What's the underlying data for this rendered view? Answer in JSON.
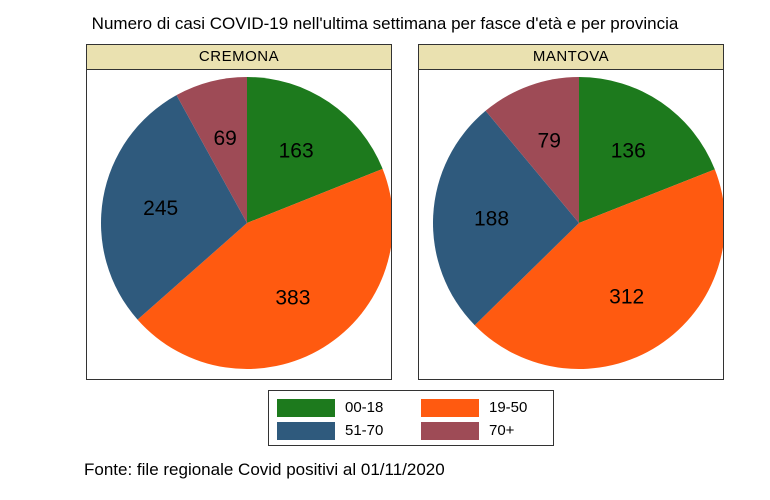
{
  "title": "Numero di casi COVID-19 nell'ultima settimana per fasce d'età e per provincia",
  "source": "Fonte: file regionale Covid positivi al 01/11/2020",
  "chart_data": {
    "type": "pie",
    "categories": [
      "00-18",
      "19-50",
      "51-70",
      "70+"
    ],
    "colors": [
      "#1d7a1d",
      "#ff5a10",
      "#2f5a7d",
      "#9e4b56"
    ],
    "legend": "bottom-center",
    "panels": [
      {
        "name": "CREMONA",
        "values": [
          163,
          383,
          245,
          69
        ]
      },
      {
        "name": "MANTOVA",
        "values": [
          136,
          312,
          188,
          79
        ]
      }
    ]
  }
}
